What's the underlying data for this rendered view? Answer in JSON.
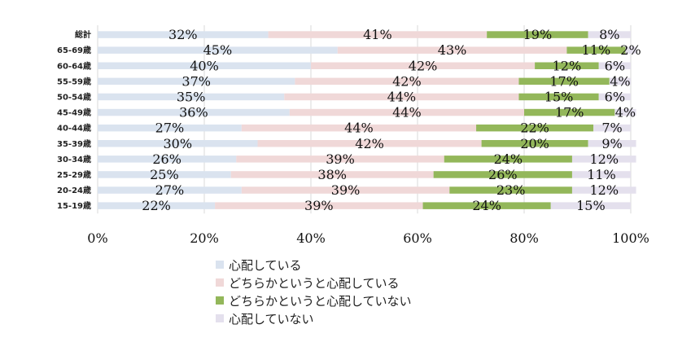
{
  "chart_data": {
    "type": "bar",
    "orientation": "horizontal",
    "stacked": true,
    "categories": [
      "総計",
      "65-69歳",
      "60-64歳",
      "55-59歳",
      "50-54歳",
      "45-49歳",
      "40-44歳",
      "35-39歳",
      "30-34歳",
      "25-29歳",
      "20-24歳",
      "15-19歳"
    ],
    "series": [
      {
        "name": "心配している",
        "color": "#dae3ef",
        "values": [
          32,
          45,
          40,
          37,
          35,
          36,
          27,
          30,
          26,
          25,
          27,
          22
        ]
      },
      {
        "name": "どちらかというと心配している",
        "color": "#f0d8d8",
        "values": [
          41,
          43,
          42,
          42,
          44,
          44,
          44,
          42,
          39,
          38,
          39,
          39
        ]
      },
      {
        "name": "どちらかというと心配していない",
        "color": "#93b75a",
        "values": [
          19,
          11,
          12,
          17,
          15,
          17,
          22,
          20,
          24,
          26,
          23,
          24
        ]
      },
      {
        "name": "心配していない",
        "color": "#e4e0ed",
        "values": [
          8,
          2,
          6,
          4,
          6,
          4,
          7,
          9,
          12,
          11,
          12,
          15
        ]
      }
    ],
    "value_suffix": "%",
    "xlim": [
      0,
      100
    ],
    "xticks": [
      "0%",
      "20%",
      "40%",
      "60%",
      "80%",
      "100%"
    ],
    "grid": true,
    "legend_position": "bottom"
  }
}
